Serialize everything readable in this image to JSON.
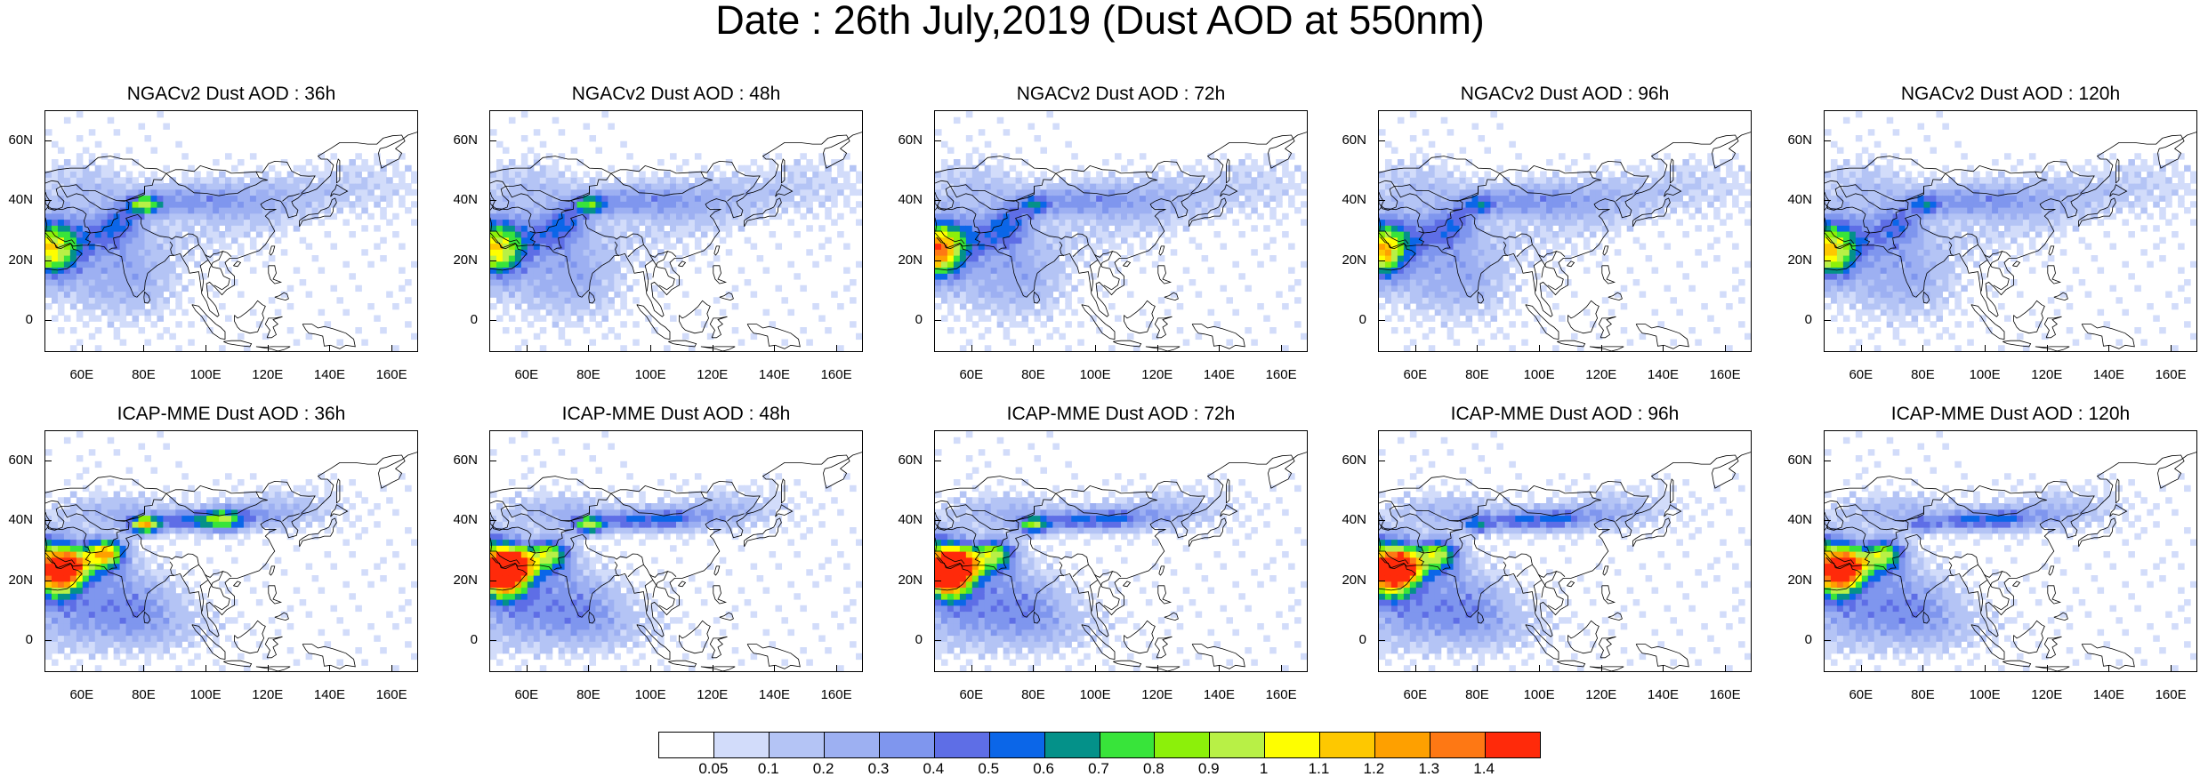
{
  "title": "Date : 26th July,2019 (Dust AOD at 550nm)",
  "panels": [
    {
      "title": "NGACv2 Dust AOD : 36h",
      "model": "ngac",
      "lead": 36
    },
    {
      "title": "NGACv2 Dust AOD : 48h",
      "model": "ngac",
      "lead": 48
    },
    {
      "title": "NGACv2 Dust AOD : 72h",
      "model": "ngac",
      "lead": 72
    },
    {
      "title": "NGACv2 Dust AOD : 96h",
      "model": "ngac",
      "lead": 96
    },
    {
      "title": "NGACv2 Dust AOD : 120h",
      "model": "ngac",
      "lead": 120
    },
    {
      "title": "ICAP-MME Dust AOD : 36h",
      "model": "icap",
      "lead": 36
    },
    {
      "title": "ICAP-MME Dust AOD : 48h",
      "model": "icap",
      "lead": 48
    },
    {
      "title": "ICAP-MME Dust AOD : 72h",
      "model": "icap",
      "lead": 72
    },
    {
      "title": "ICAP-MME Dust AOD : 96h",
      "model": "icap",
      "lead": 96
    },
    {
      "title": "ICAP-MME Dust AOD : 120h",
      "model": "icap",
      "lead": 120
    }
  ],
  "map": {
    "lon_range": [
      48,
      168
    ],
    "lat_range": [
      -10,
      70
    ],
    "lat_ticks": [
      "60N",
      "40N",
      "20N",
      "0"
    ],
    "lat_values": [
      60,
      40,
      20,
      0
    ],
    "lon_ticks": [
      "60E",
      "80E",
      "100E",
      "120E",
      "140E",
      "160E"
    ],
    "lon_values": [
      60,
      80,
      100,
      120,
      140,
      160
    ]
  },
  "colorbar": {
    "labels": [
      "0.05",
      "0.1",
      "0.2",
      "0.3",
      "0.4",
      "0.5",
      "0.6",
      "0.7",
      "0.8",
      "0.9",
      "1",
      "1.1",
      "1.2",
      "1.3",
      "1.4"
    ],
    "colors": [
      "#ffffff",
      "#d2dcfa",
      "#b4c4f5",
      "#9db0f2",
      "#7f96ee",
      "#5e6ee6",
      "#0b66e8",
      "#049189",
      "#38e43a",
      "#8cf00a",
      "#b8f046",
      "#fefe00",
      "#fec800",
      "#fea000",
      "#fe7814",
      "#ff2a0a"
    ]
  }
}
